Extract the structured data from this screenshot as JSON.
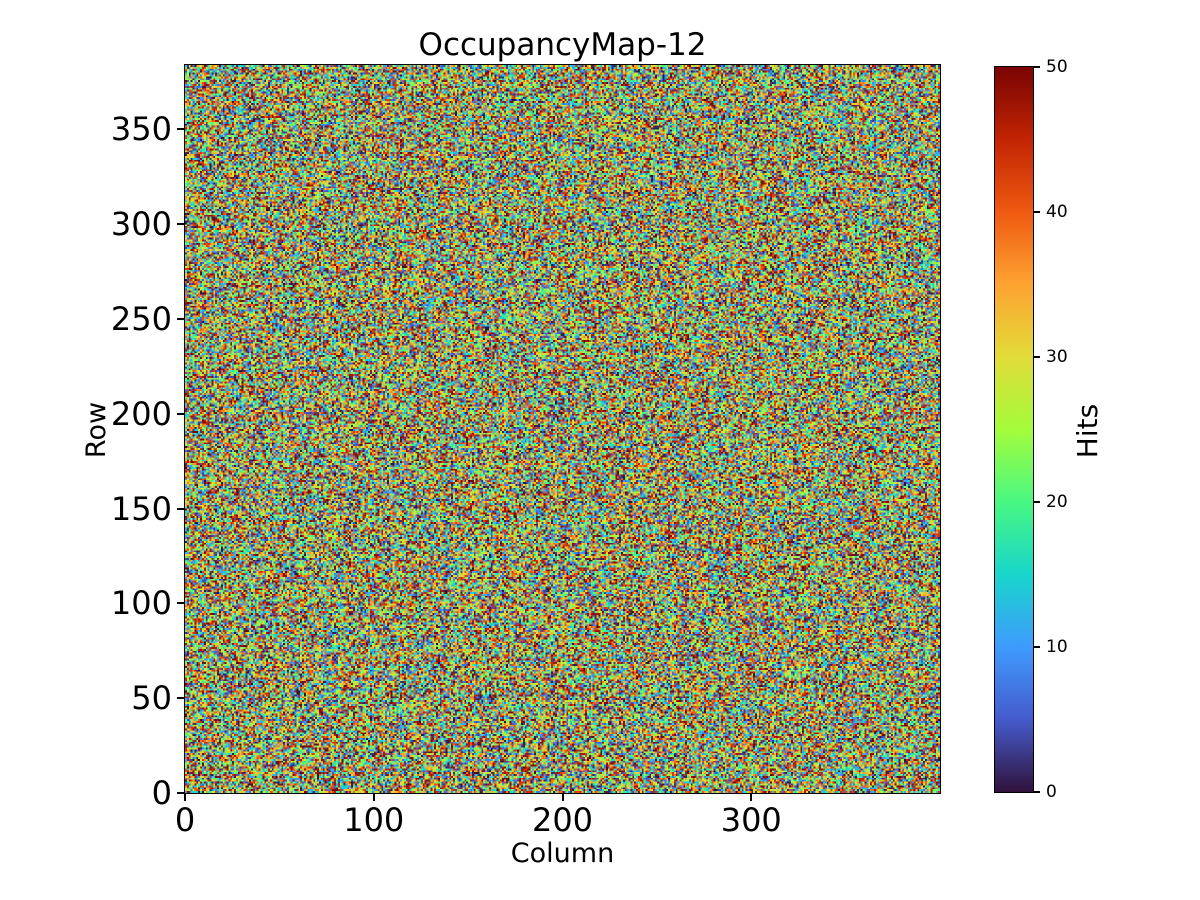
{
  "figure": {
    "background": "#ffffff",
    "text_color": "#000000",
    "spine_color": "#000000"
  },
  "chart_data": {
    "type": "heatmap",
    "title": "OccupancyMap-12",
    "xlabel": "Column",
    "ylabel": "Row",
    "colorbar_label": "Hits",
    "x_range": [
      0,
      400
    ],
    "y_range": [
      0,
      384
    ],
    "value_range": [
      0,
      50
    ],
    "x_ticks": [
      0,
      100,
      200,
      300
    ],
    "y_ticks": [
      0,
      50,
      100,
      150,
      200,
      250,
      300,
      350
    ],
    "colorbar_ticks": [
      0,
      10,
      20,
      30,
      40,
      50
    ],
    "n_cols": 400,
    "n_rows": 384,
    "cell_values": "uniform random integers 0-50 (pixel noise, no visible structure)",
    "seed": 12,
    "grid": false,
    "legend": false,
    "colormap": "turbo",
    "colormap_stops": [
      [
        0.0,
        "#30123b"
      ],
      [
        0.1,
        "#455bcd"
      ],
      [
        0.2,
        "#3e9bfe"
      ],
      [
        0.3,
        "#18d6cb"
      ],
      [
        0.4,
        "#48f882"
      ],
      [
        0.5,
        "#a4fc3b"
      ],
      [
        0.6,
        "#e2dc38"
      ],
      [
        0.7,
        "#fea331"
      ],
      [
        0.8,
        "#ef5911"
      ],
      [
        0.9,
        "#c22403"
      ],
      [
        1.0,
        "#7a0403"
      ]
    ]
  }
}
